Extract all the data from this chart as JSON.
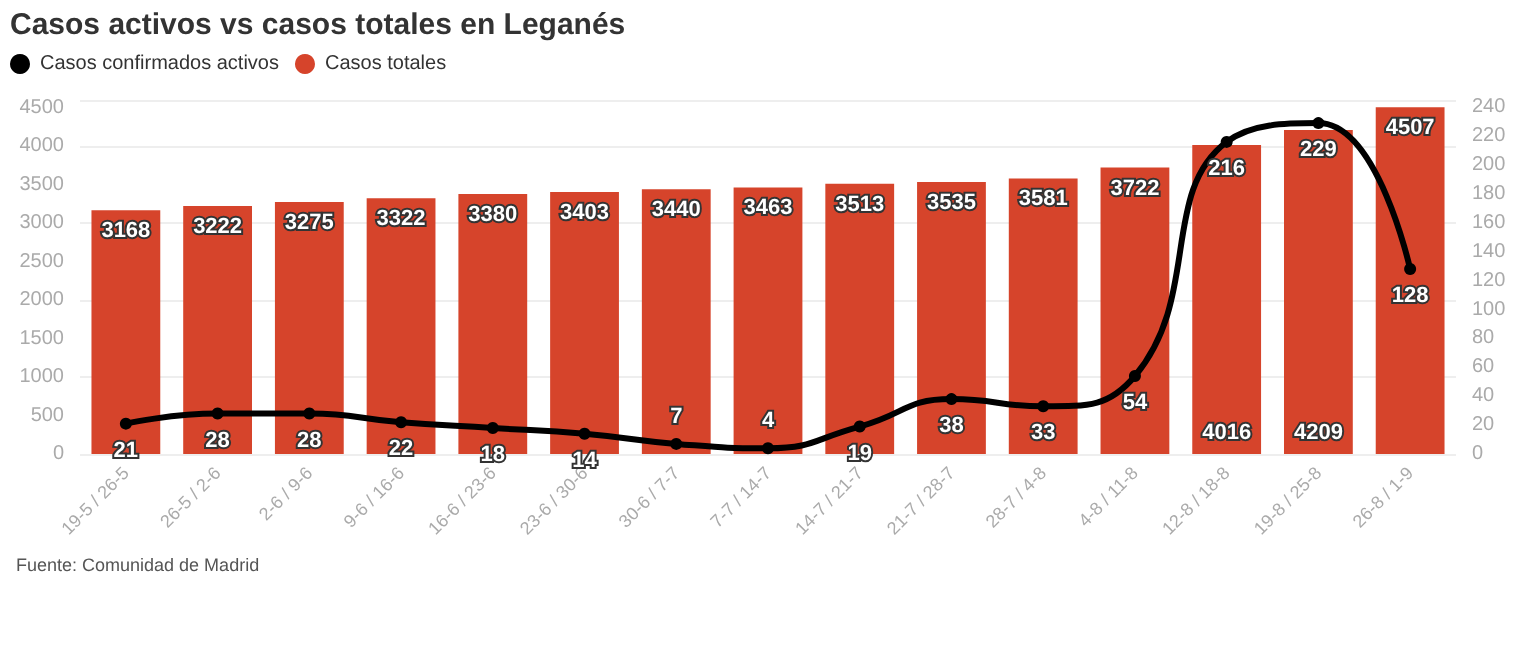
{
  "chart_data": {
    "type": "bar",
    "title": "Casos activos vs casos totales en Leganés",
    "categories": [
      "19-5 / 26-5",
      "26-5 / 2-6",
      "2-6 / 9-6",
      "9-6 / 16-6",
      "16-6 / 23-6",
      "23-6 / 30-6",
      "30-6 / 7-7",
      "7-7 / 14-7",
      "14-7 / 21-7",
      "21-7 / 28-7",
      "28-7 / 4-8",
      "4-8 / 11-8",
      "12-8 / 18-8",
      "19-8 / 25-8",
      "26-8 / 1-9"
    ],
    "series": [
      {
        "name": "Casos confirmados activos",
        "type": "line",
        "axis": "y2",
        "color": "#000000",
        "values": [
          21,
          28,
          28,
          22,
          18,
          14,
          7,
          4,
          19,
          38,
          33,
          54,
          216,
          229,
          128
        ]
      },
      {
        "name": "Casos totales",
        "color": "#d6442b",
        "values": [
          3168,
          3222,
          3275,
          3322,
          3380,
          3403,
          3440,
          3463,
          3513,
          3535,
          3581,
          3722,
          4016,
          4209,
          4507
        ]
      }
    ],
    "ylim": [
      0,
      4600
    ],
    "yticks": [
      0,
      500,
      1000,
      1500,
      2000,
      2500,
      3000,
      3500,
      4000,
      4500
    ],
    "y2lim": [
      0,
      245
    ],
    "y2ticks": [
      0,
      20,
      40,
      60,
      80,
      100,
      120,
      140,
      160,
      180,
      200,
      220,
      240
    ],
    "grid": "y",
    "legend": "top left",
    "marker": "circle",
    "line_style": "solid",
    "data_labels": true,
    "annotations": [
      "Fuente: Comunidad de Madrid"
    ]
  }
}
